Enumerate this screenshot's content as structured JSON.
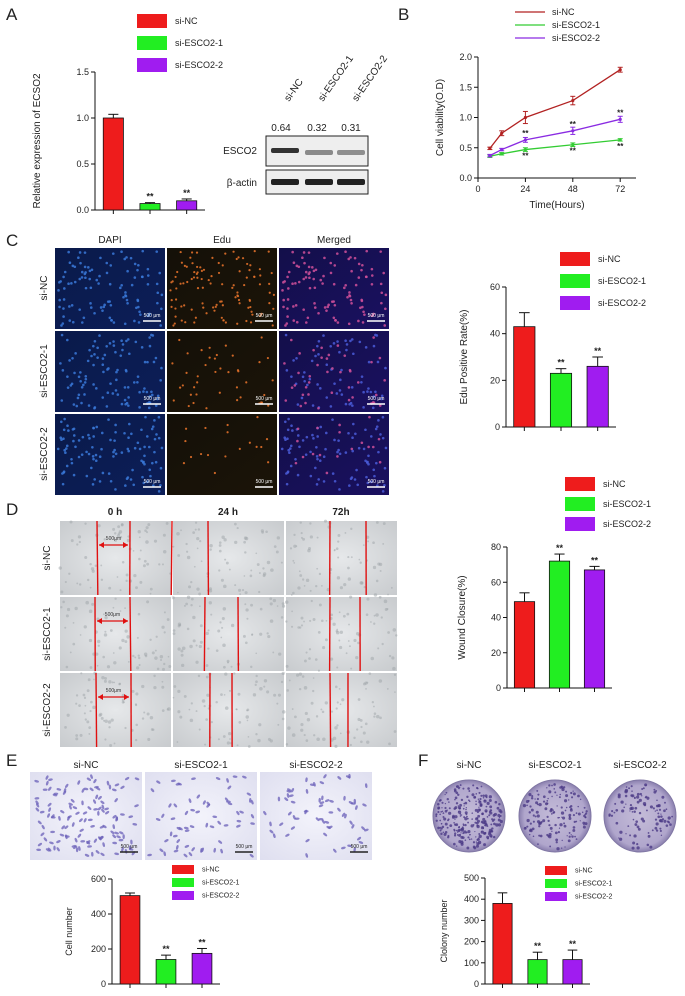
{
  "colors": {
    "nc": "#ee1c1c",
    "e1": "#22ee22",
    "e2": "#a01cf0",
    "line_nc": "#b22222",
    "line_e1": "#33cc33",
    "line_e2": "#8a2be2"
  },
  "panels": [
    "A",
    "B",
    "C",
    "D",
    "E",
    "F"
  ],
  "legend_groups": [
    "si-NC",
    "si-ESCO2-1",
    "si-ESCO2-2"
  ],
  "sig": "**",
  "A": {
    "wb_values": [
      "0.64",
      "0.32",
      "0.31"
    ],
    "wb_lane_labels": [
      "si-NC",
      "si-ESCO2-1",
      "si-ESCO2-2"
    ],
    "wb_proteins": [
      "ESCO2",
      "β-actin"
    ]
  },
  "C": {
    "cols": [
      "DAPI",
      "Edu",
      "Merged"
    ],
    "rows": [
      "si-NC",
      "si-ESCO2-1",
      "si-ESCO2-2"
    ],
    "scale": "500 μm"
  },
  "D": {
    "cols": [
      "0 h",
      "24 h",
      "72h"
    ],
    "rows": [
      "si-NC",
      "si-ESCO2-1",
      "si-ESCO2-2"
    ],
    "scale": "500μm"
  },
  "E": {
    "cols": [
      "si-NC",
      "si-ESCO2-1",
      "si-ESCO2-2"
    ],
    "scale": "500 μm"
  },
  "F": {
    "cols": [
      "si-NC",
      "si-ESCO2-1",
      "si-ESCO2-2"
    ]
  },
  "chart_data": [
    {
      "id": "A",
      "type": "bar",
      "categories": [
        "si-NC",
        "si-ESCO2-1",
        "si-ESCO2-2"
      ],
      "values": [
        1.0,
        0.07,
        0.1
      ],
      "errors": [
        0.04,
        0.01,
        0.02
      ],
      "ylabel": "Relative expression of ECSO2",
      "ylim": [
        0,
        1.5
      ],
      "yticks": [
        "0.0",
        "0.5",
        "1.0",
        "1.5"
      ],
      "yticks_v": [
        0,
        0.5,
        1.0,
        1.5
      ],
      "sig": [
        "",
        "**",
        "**"
      ]
    },
    {
      "id": "B",
      "type": "line",
      "x": [
        6,
        12,
        24,
        48,
        72
      ],
      "series": [
        {
          "name": "si-NC",
          "values": [
            0.49,
            0.74,
            1.0,
            1.28,
            1.79
          ],
          "errors": [
            0.02,
            0.04,
            0.1,
            0.07,
            0.04
          ]
        },
        {
          "name": "si-ESCO2-1",
          "values": [
            0.36,
            0.4,
            0.47,
            0.55,
            0.63
          ],
          "errors": [
            0.02,
            0.02,
            0.03,
            0.03,
            0.02
          ]
        },
        {
          "name": "si-ESCO2-2",
          "values": [
            0.37,
            0.47,
            0.63,
            0.78,
            0.97
          ],
          "errors": [
            0.02,
            0.02,
            0.04,
            0.06,
            0.05
          ]
        }
      ],
      "xlabel": "Time(Hours)",
      "ylabel": "Cell viability(O.D)",
      "xlim": [
        0,
        80
      ],
      "ylim": [
        0,
        2.0
      ],
      "xticks": [
        "0",
        "24",
        "48",
        "72"
      ],
      "xticks_v": [
        0,
        24,
        48,
        72
      ],
      "yticks": [
        "0.0",
        "0.5",
        "1.0",
        "1.5",
        "2.0"
      ],
      "yticks_v": [
        0,
        0.5,
        1.0,
        1.5,
        2.0
      ]
    },
    {
      "id": "C",
      "type": "bar",
      "categories": [
        "si-NC",
        "si-ESCO2-1",
        "si-ESCO2-2"
      ],
      "values": [
        43,
        23,
        26
      ],
      "errors": [
        6,
        2,
        4
      ],
      "ylabel": "Edu Positive Rate(%)",
      "ylim": [
        0,
        60
      ],
      "yticks": [
        "0",
        "20",
        "40",
        "60"
      ],
      "yticks_v": [
        0,
        20,
        40,
        60
      ],
      "sig": [
        "",
        "**",
        "**"
      ]
    },
    {
      "id": "D",
      "type": "bar",
      "categories": [
        "si-NC",
        "si-ESCO2-1",
        "si-ESCO2-2"
      ],
      "values": [
        49,
        72,
        67
      ],
      "errors": [
        5,
        4,
        2
      ],
      "ylabel": "Wound Closure(%)",
      "ylim": [
        0,
        80
      ],
      "yticks": [
        "0",
        "20",
        "40",
        "60",
        "80"
      ],
      "yticks_v": [
        0,
        20,
        40,
        60,
        80
      ],
      "sig": [
        "",
        "**",
        "**"
      ]
    },
    {
      "id": "E",
      "type": "bar",
      "categories": [
        "si-NC",
        "si-ESCO2-1",
        "si-ESCO2-2"
      ],
      "values": [
        505,
        140,
        175
      ],
      "errors": [
        15,
        25,
        28
      ],
      "ylabel": "Cell number",
      "ylim": [
        0,
        600
      ],
      "yticks": [
        "0",
        "200",
        "400",
        "600"
      ],
      "yticks_v": [
        0,
        200,
        400,
        600
      ],
      "sig": [
        "",
        "**",
        "**"
      ]
    },
    {
      "id": "F",
      "type": "bar",
      "categories": [
        "si-NC",
        "si-ESCO2-1",
        "si-ESCO2-2"
      ],
      "values": [
        380,
        115,
        115
      ],
      "errors": [
        50,
        35,
        45
      ],
      "ylabel": "Clolony number",
      "ylim": [
        0,
        500
      ],
      "yticks": [
        "0",
        "100",
        "200",
        "300",
        "400",
        "500"
      ],
      "yticks_v": [
        0,
        100,
        200,
        300,
        400,
        500
      ],
      "sig": [
        "",
        "**",
        "**"
      ]
    }
  ]
}
